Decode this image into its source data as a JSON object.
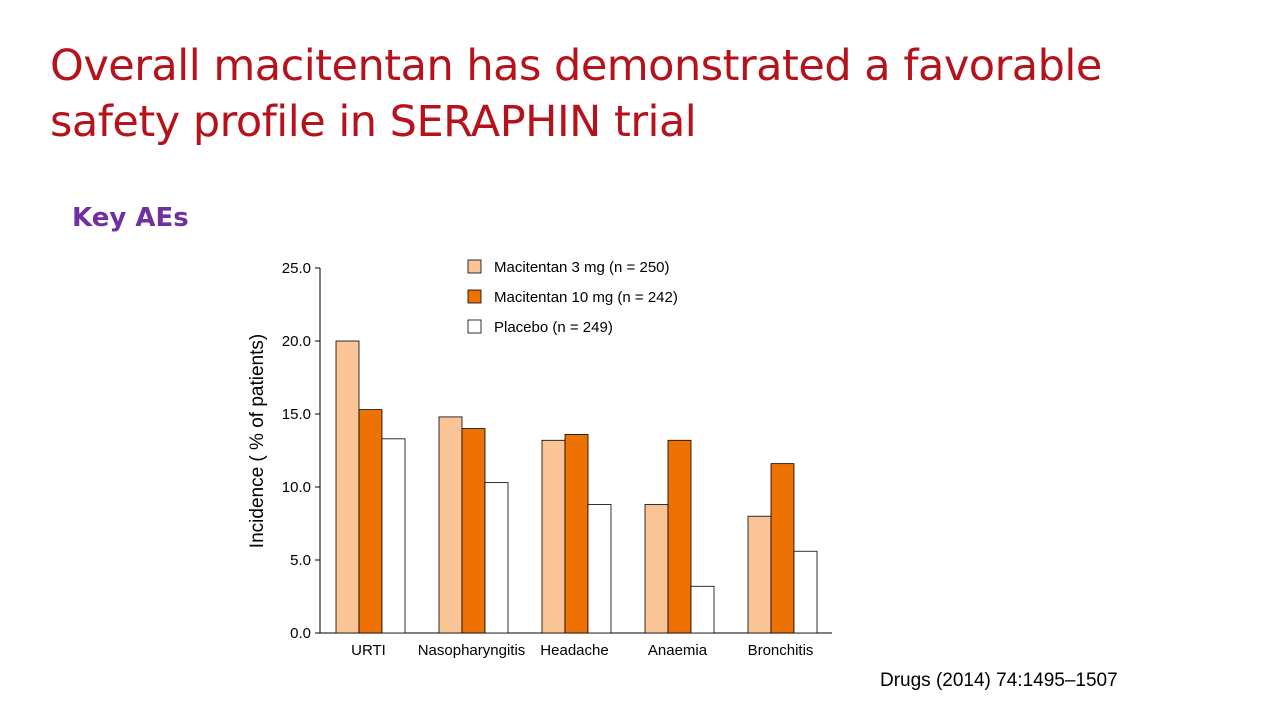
{
  "slide": {
    "title_line1": "Overall macitentan has demonstrated a favorable",
    "title_line2": "safety profile in SERAPHIN trial",
    "subtitle": "Key AEs",
    "citation": "Drugs (2014) 74:1495–1507"
  },
  "chart_data": {
    "type": "bar",
    "title": "",
    "xlabel": "",
    "ylabel": "Incidence ( % of patients)",
    "ylim": [
      0,
      25
    ],
    "yticks": [
      "0.0",
      "5.0",
      "10.0",
      "15.0",
      "20.0",
      "25.0"
    ],
    "categories": [
      "URTI",
      "Nasopharyngitis",
      "Headache",
      "Anaemia",
      "Bronchitis"
    ],
    "legend_position": "top-center",
    "series": [
      {
        "name": "Macitentan 3 mg (n = 250)",
        "color": "#fbc497",
        "values": [
          20.0,
          14.8,
          13.2,
          8.8,
          8.0
        ]
      },
      {
        "name": "Macitentan 10 mg (n = 242)",
        "color": "#ee7203",
        "values": [
          15.3,
          14.0,
          13.6,
          13.2,
          11.6
        ]
      },
      {
        "name": "Placebo (n = 249)",
        "color": "#ffffff",
        "values": [
          13.3,
          10.3,
          8.8,
          3.2,
          5.6
        ]
      }
    ]
  }
}
